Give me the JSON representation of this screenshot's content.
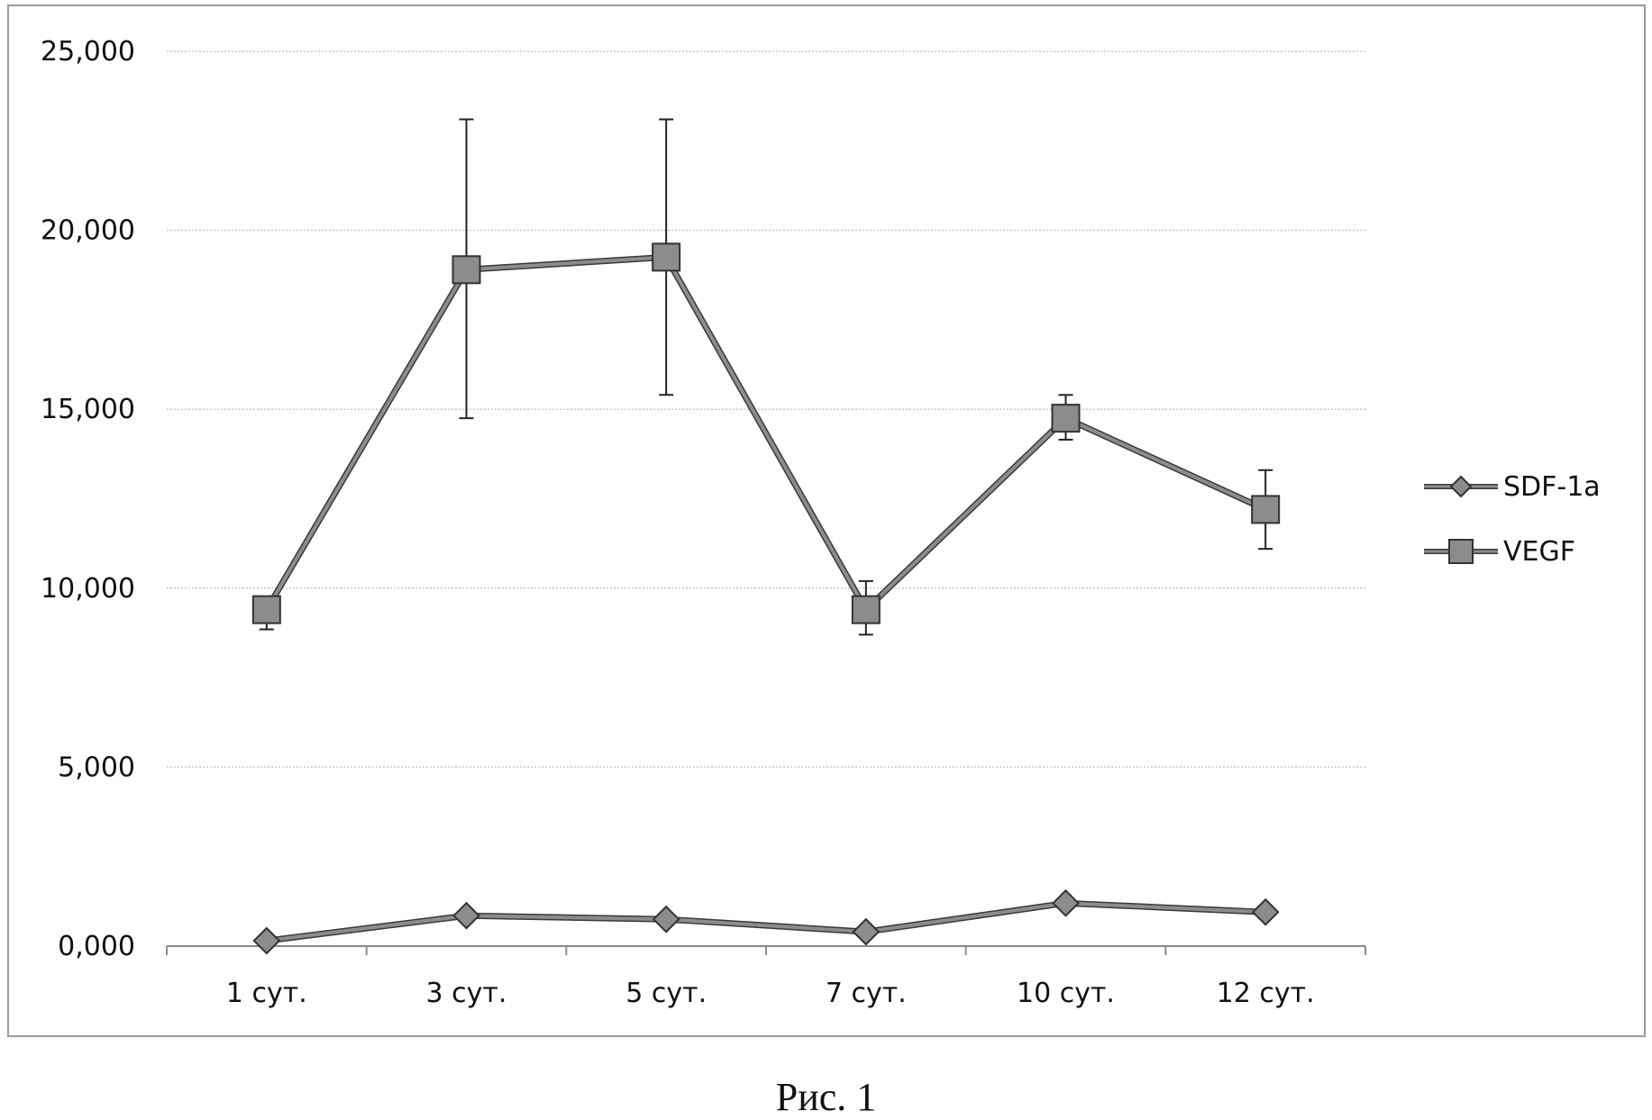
{
  "chart_data": {
    "type": "line",
    "categories": [
      "1 сут.",
      "3 сут.",
      "5 сут.",
      "7 сут.",
      "10 сут.",
      "12 сут."
    ],
    "series": [
      {
        "name": "SDF-1a",
        "values": [
          0.15,
          0.85,
          0.75,
          0.4,
          1.2,
          0.95
        ],
        "marker": "diamond",
        "color": "#8c8c8c"
      },
      {
        "name": "VEGF",
        "values": [
          9.4,
          18.9,
          19.25,
          9.4,
          14.75,
          12.2
        ],
        "error_low": [
          8.85,
          14.75,
          15.4,
          8.7,
          14.15,
          11.1
        ],
        "error_high": [
          9.55,
          23.1,
          23.1,
          10.2,
          15.4,
          13.3
        ],
        "marker": "square",
        "color": "#8c8c8c"
      }
    ],
    "y_ticks": [
      "0,000",
      "5,000",
      "10,000",
      "15,000",
      "20,000",
      "25,000"
    ],
    "ylim": [
      0,
      25
    ],
    "grid": true,
    "legend": "right"
  },
  "caption": "Рис. 1"
}
